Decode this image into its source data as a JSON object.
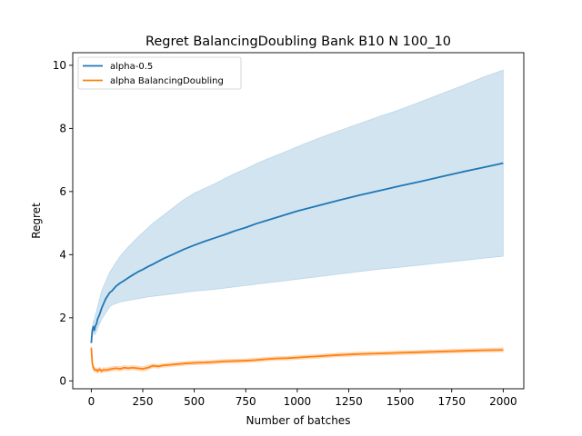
{
  "chart_data": {
    "type": "line",
    "title": "Regret BalancingDoubling Bank B10 N 100_10",
    "xlabel": "Number of batches",
    "ylabel": "Regret",
    "xlim": [
      -90,
      2100
    ],
    "ylim": [
      -0.25,
      10.4
    ],
    "xticks": [
      0,
      250,
      500,
      750,
      1000,
      1250,
      1500,
      1750,
      2000
    ],
    "yticks": [
      0,
      2,
      4,
      6,
      8,
      10
    ],
    "grid": false,
    "legend_position": "top-left",
    "series": [
      {
        "name": "alpha-0.5",
        "color": "#1f77b4",
        "x": [
          0,
          5,
          10,
          15,
          20,
          25,
          30,
          40,
          50,
          60,
          70,
          80,
          90,
          100,
          120,
          140,
          160,
          180,
          200,
          225,
          250,
          275,
          300,
          350,
          400,
          450,
          500,
          550,
          600,
          650,
          700,
          750,
          800,
          850,
          900,
          950,
          1000,
          1100,
          1200,
          1300,
          1400,
          1500,
          1600,
          1700,
          1800,
          1900,
          2000
        ],
        "values": [
          1.2,
          1.6,
          1.72,
          1.6,
          1.75,
          1.8,
          1.95,
          2.1,
          2.3,
          2.45,
          2.6,
          2.7,
          2.8,
          2.85,
          3.0,
          3.1,
          3.18,
          3.27,
          3.35,
          3.45,
          3.53,
          3.62,
          3.7,
          3.87,
          4.02,
          4.17,
          4.3,
          4.42,
          4.53,
          4.64,
          4.76,
          4.86,
          4.98,
          5.08,
          5.18,
          5.28,
          5.38,
          5.55,
          5.72,
          5.88,
          6.03,
          6.18,
          6.32,
          6.47,
          6.62,
          6.76,
          6.9
        ],
        "upper": [
          1.2,
          1.7,
          1.9,
          1.95,
          2.1,
          2.2,
          2.35,
          2.6,
          2.85,
          3.0,
          3.15,
          3.3,
          3.45,
          3.55,
          3.75,
          3.95,
          4.1,
          4.25,
          4.38,
          4.55,
          4.7,
          4.85,
          5.0,
          5.25,
          5.5,
          5.75,
          5.95,
          6.1,
          6.25,
          6.42,
          6.58,
          6.72,
          6.88,
          7.02,
          7.15,
          7.28,
          7.42,
          7.68,
          7.92,
          8.15,
          8.38,
          8.6,
          8.85,
          9.1,
          9.35,
          9.62,
          9.85
        ],
        "lower": [
          1.2,
          1.5,
          1.55,
          1.45,
          1.5,
          1.55,
          1.65,
          1.8,
          1.95,
          2.05,
          2.15,
          2.25,
          2.35,
          2.4,
          2.45,
          2.5,
          2.52,
          2.55,
          2.57,
          2.6,
          2.63,
          2.66,
          2.68,
          2.72,
          2.76,
          2.8,
          2.84,
          2.87,
          2.9,
          2.94,
          2.98,
          3.02,
          3.06,
          3.1,
          3.14,
          3.18,
          3.22,
          3.3,
          3.38,
          3.46,
          3.54,
          3.6,
          3.67,
          3.74,
          3.81,
          3.88,
          3.95
        ]
      },
      {
        "name": "alpha BalancingDoubling",
        "color": "#ff7f0e",
        "x": [
          0,
          5,
          10,
          15,
          20,
          25,
          30,
          40,
          50,
          60,
          70,
          80,
          90,
          100,
          120,
          140,
          160,
          180,
          200,
          225,
          250,
          275,
          300,
          325,
          350,
          400,
          450,
          500,
          550,
          600,
          650,
          700,
          750,
          800,
          850,
          900,
          950,
          1000,
          1050,
          1100,
          1200,
          1300,
          1400,
          1500,
          1600,
          1700,
          1800,
          1900,
          2000
        ],
        "values": [
          1.05,
          0.55,
          0.42,
          0.36,
          0.34,
          0.35,
          0.31,
          0.37,
          0.31,
          0.35,
          0.34,
          0.35,
          0.37,
          0.38,
          0.4,
          0.38,
          0.42,
          0.4,
          0.42,
          0.4,
          0.38,
          0.42,
          0.48,
          0.46,
          0.49,
          0.52,
          0.55,
          0.57,
          0.58,
          0.6,
          0.62,
          0.63,
          0.64,
          0.66,
          0.69,
          0.71,
          0.72,
          0.74,
          0.76,
          0.78,
          0.82,
          0.85,
          0.87,
          0.89,
          0.91,
          0.93,
          0.95,
          0.97,
          0.98
        ],
        "upper": [
          1.1,
          0.65,
          0.5,
          0.44,
          0.41,
          0.42,
          0.38,
          0.44,
          0.38,
          0.42,
          0.41,
          0.42,
          0.44,
          0.45,
          0.47,
          0.45,
          0.49,
          0.47,
          0.49,
          0.47,
          0.45,
          0.49,
          0.54,
          0.52,
          0.55,
          0.58,
          0.61,
          0.63,
          0.64,
          0.66,
          0.68,
          0.69,
          0.7,
          0.72,
          0.75,
          0.77,
          0.78,
          0.8,
          0.82,
          0.84,
          0.88,
          0.91,
          0.93,
          0.95,
          0.97,
          0.99,
          1.01,
          1.03,
          1.05
        ],
        "lower": [
          1.0,
          0.45,
          0.34,
          0.28,
          0.27,
          0.28,
          0.24,
          0.3,
          0.24,
          0.28,
          0.27,
          0.28,
          0.3,
          0.31,
          0.33,
          0.31,
          0.35,
          0.33,
          0.35,
          0.33,
          0.31,
          0.35,
          0.42,
          0.4,
          0.43,
          0.46,
          0.49,
          0.51,
          0.52,
          0.54,
          0.56,
          0.57,
          0.58,
          0.6,
          0.63,
          0.65,
          0.66,
          0.68,
          0.7,
          0.72,
          0.76,
          0.79,
          0.81,
          0.83,
          0.85,
          0.87,
          0.89,
          0.91,
          0.92
        ]
      }
    ]
  }
}
